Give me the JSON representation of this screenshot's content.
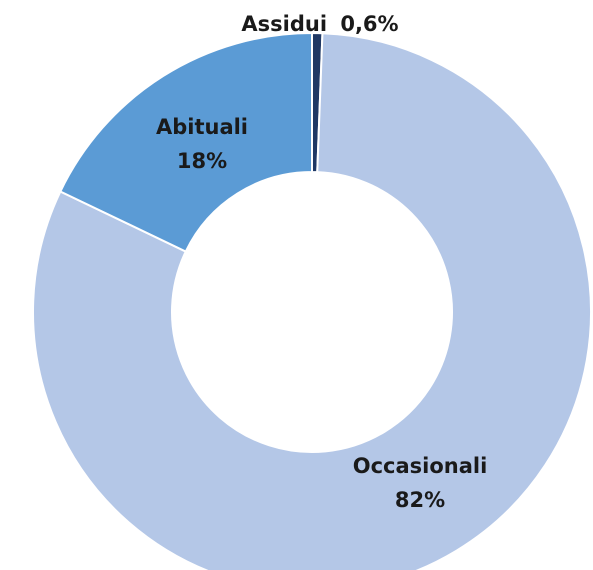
{
  "chart_data": {
    "type": "pie",
    "variant": "donut",
    "title": "",
    "legend": "none",
    "slices": [
      {
        "name": "Assidui",
        "value": 0.6,
        "label": "0,6%",
        "color": "#1f3864"
      },
      {
        "name": "Occasionali",
        "value": 82,
        "label": "82%",
        "color": "#b4c7e7"
      },
      {
        "name": "Abituali",
        "value": 18,
        "label": "18%",
        "color": "#5b9bd5"
      }
    ]
  }
}
